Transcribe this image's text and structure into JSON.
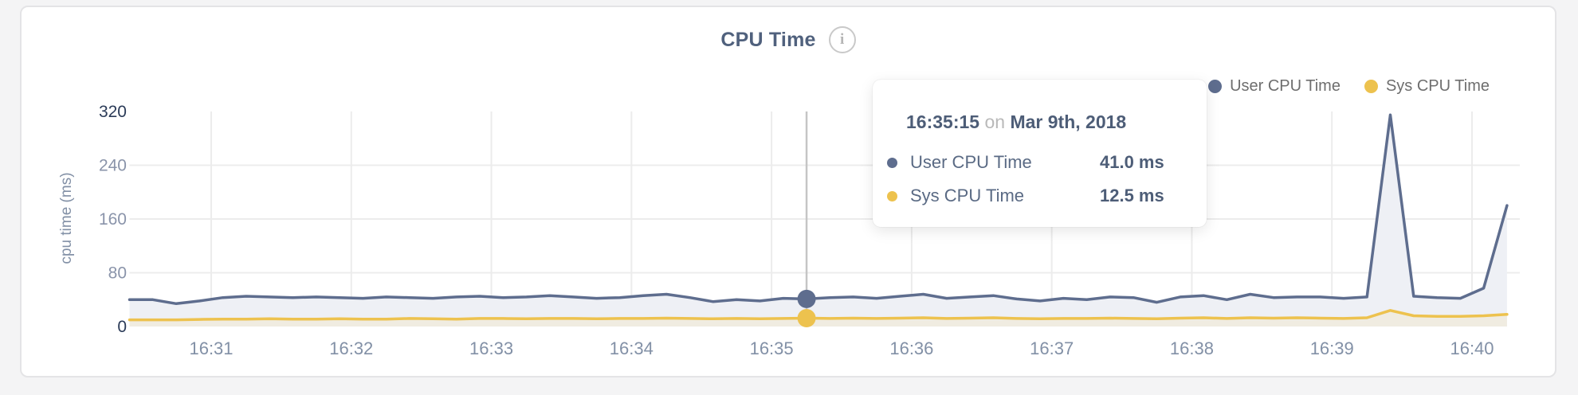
{
  "page": {
    "background": "#f4f4f5"
  },
  "card": {
    "title": "CPU Time",
    "info_icon": "i"
  },
  "legend": [
    {
      "name": "User CPU Time",
      "color": "#5e6d8e"
    },
    {
      "name": "Sys CPU Time",
      "color": "#edc24e"
    }
  ],
  "tooltip": {
    "time": "16:35:15",
    "connector": "on",
    "date": "Mar 9th, 2018",
    "rows": [
      {
        "label": "User CPU Time",
        "value": "41.0 ms",
        "color": "#5e6d8e"
      },
      {
        "label": "Sys CPU Time",
        "value": "12.5 ms",
        "color": "#edc24e"
      }
    ]
  },
  "chart_data": {
    "type": "area",
    "title": "CPU Time",
    "xlabel": "",
    "ylabel": "cpu time (ms)",
    "ylim": [
      0,
      320
    ],
    "yticks": [
      0,
      80,
      160,
      240,
      320
    ],
    "ytick_emphasized": [
      0,
      320
    ],
    "grid": true,
    "legend_position": "top-right",
    "x_time_base": "16:30:00",
    "x_start_second": 25,
    "x_step_seconds": 10,
    "xticks": [
      {
        "second": 60,
        "label": "16:31"
      },
      {
        "second": 120,
        "label": "16:32"
      },
      {
        "second": 180,
        "label": "16:33"
      },
      {
        "second": 240,
        "label": "16:34"
      },
      {
        "second": 300,
        "label": "16:35"
      },
      {
        "second": 360,
        "label": "16:36"
      },
      {
        "second": 420,
        "label": "16:37"
      },
      {
        "second": 480,
        "label": "16:38"
      },
      {
        "second": 540,
        "label": "16:39"
      },
      {
        "second": 600,
        "label": "16:40"
      }
    ],
    "series": [
      {
        "name": "User CPU Time",
        "unit": "ms",
        "color": "#5e6d8e",
        "fill": "#eef0f5",
        "values": [
          40,
          40,
          34,
          38,
          43,
          45,
          44,
          43,
          44,
          43,
          42,
          44,
          43,
          42,
          44,
          45,
          43,
          44,
          46,
          44,
          42,
          43,
          46,
          48,
          43,
          37,
          40,
          38,
          42,
          41,
          43,
          44,
          42,
          45,
          48,
          42,
          44,
          46,
          41,
          38,
          42,
          40,
          44,
          43,
          36,
          44,
          46,
          40,
          48,
          43,
          44,
          44,
          42,
          44,
          315,
          45,
          43,
          42,
          57,
          180
        ]
      },
      {
        "name": "Sys CPU Time",
        "unit": "ms",
        "color": "#edc24e",
        "fill": "#f0ece1",
        "values": [
          10,
          10,
          10,
          10.5,
          11,
          11,
          11.5,
          11,
          11,
          11.5,
          11,
          11,
          12,
          11.5,
          11,
          12,
          12,
          11.5,
          12,
          12,
          11.5,
          12,
          12,
          12.5,
          12,
          11.5,
          12,
          11.5,
          12,
          12.5,
          12,
          12.5,
          12,
          12.5,
          13,
          12,
          12.5,
          13,
          12,
          11.5,
          12,
          12,
          12.5,
          12,
          11.5,
          12.5,
          13,
          12,
          13,
          12.5,
          13,
          12.5,
          12,
          13,
          24,
          16,
          15,
          15,
          16,
          18
        ]
      }
    ],
    "highlight": {
      "time": "16:35:15",
      "second": 315,
      "index": 29,
      "values": {
        "User CPU Time": 41.0,
        "Sys CPU Time": 12.5
      },
      "crosshair_color": "#c5c5c5"
    },
    "colors": {
      "gridline": "#ececec",
      "ytick_dark": "#2b3b58",
      "ytick_light": "#8a94aa",
      "xtick": "#8290a6"
    }
  }
}
